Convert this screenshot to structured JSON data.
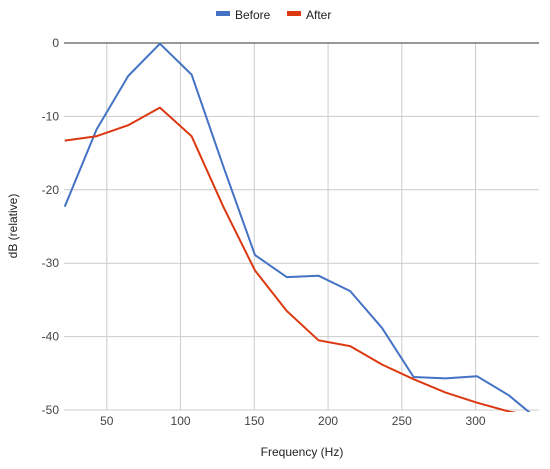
{
  "chart_data": {
    "type": "line",
    "title": "",
    "xlabel": "Frequency (Hz)",
    "ylabel": "dB (relative)",
    "xlim": [
      21,
      343
    ],
    "ylim": [
      -50,
      0
    ],
    "x_ticks": [
      50,
      100,
      150,
      200,
      250,
      300
    ],
    "y_ticks": [
      0,
      -10,
      -20,
      -30,
      -40,
      -50
    ],
    "grid": true,
    "legend_position": "top-center",
    "series": [
      {
        "name": "Before",
        "color": "#4472c4",
        "x": [
          21.5,
          43,
          64.5,
          86,
          107.5,
          129,
          150.5,
          172,
          193.5,
          215,
          236.5,
          258,
          279.5,
          301,
          322.5,
          343
        ],
        "y": [
          -22.3,
          -11.8,
          -4.5,
          -0.1,
          -4.3,
          -16.8,
          -28.9,
          -31.9,
          -31.7,
          -33.8,
          -38.8,
          -45.5,
          -45.7,
          -45.4,
          -48.0,
          -51.4
        ]
      },
      {
        "name": "After",
        "color": "#dc3912",
        "x": [
          21.5,
          43,
          64.5,
          86,
          107.5,
          129,
          150.5,
          172,
          193.5,
          215,
          236.5,
          258,
          279.5,
          301,
          322.5,
          343
        ],
        "y": [
          -13.3,
          -12.7,
          -11.2,
          -8.8,
          -12.7,
          -22.3,
          -31.0,
          -36.5,
          -40.5,
          -41.3,
          -43.8,
          -45.8,
          -47.6,
          -49.0,
          -50.2,
          -51.0
        ]
      }
    ]
  }
}
